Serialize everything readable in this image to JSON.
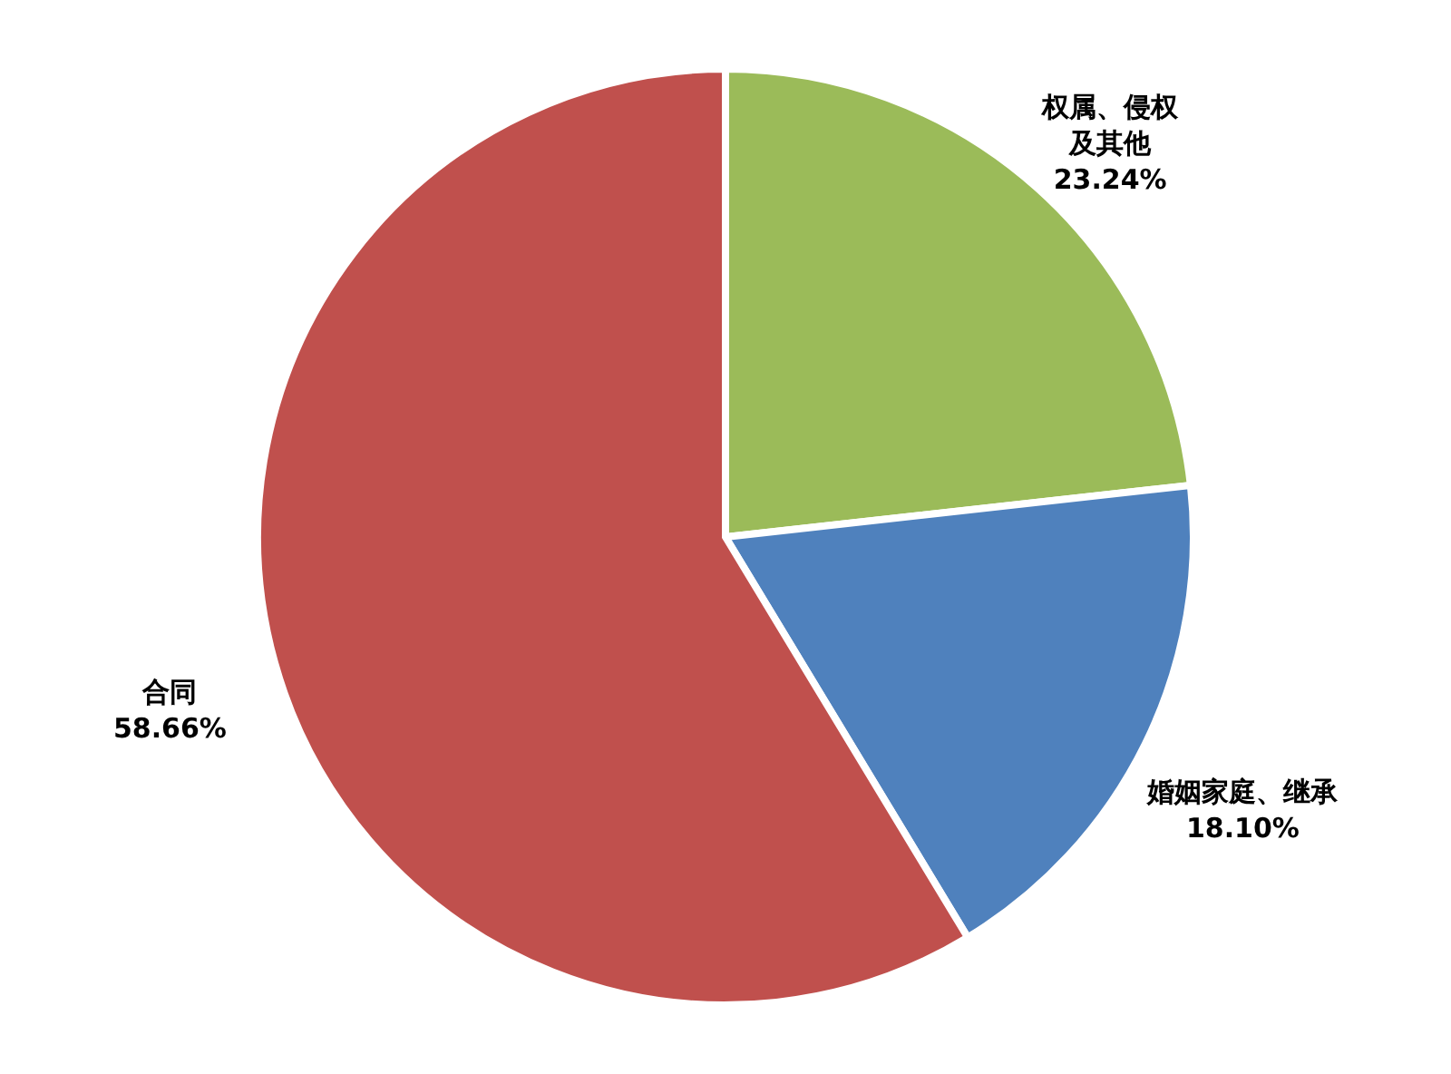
{
  "chart_data": {
    "type": "pie",
    "categories": [
      "权属、侵权及其他",
      "婚姻家庭、继承",
      "合同"
    ],
    "values": [
      23.24,
      18.1,
      58.66
    ],
    "value_labels": [
      "23.24%",
      "18.10%",
      "58.66%"
    ],
    "colors": [
      "#9bbb59",
      "#4f81bd",
      "#c0504d"
    ],
    "legend": false
  }
}
